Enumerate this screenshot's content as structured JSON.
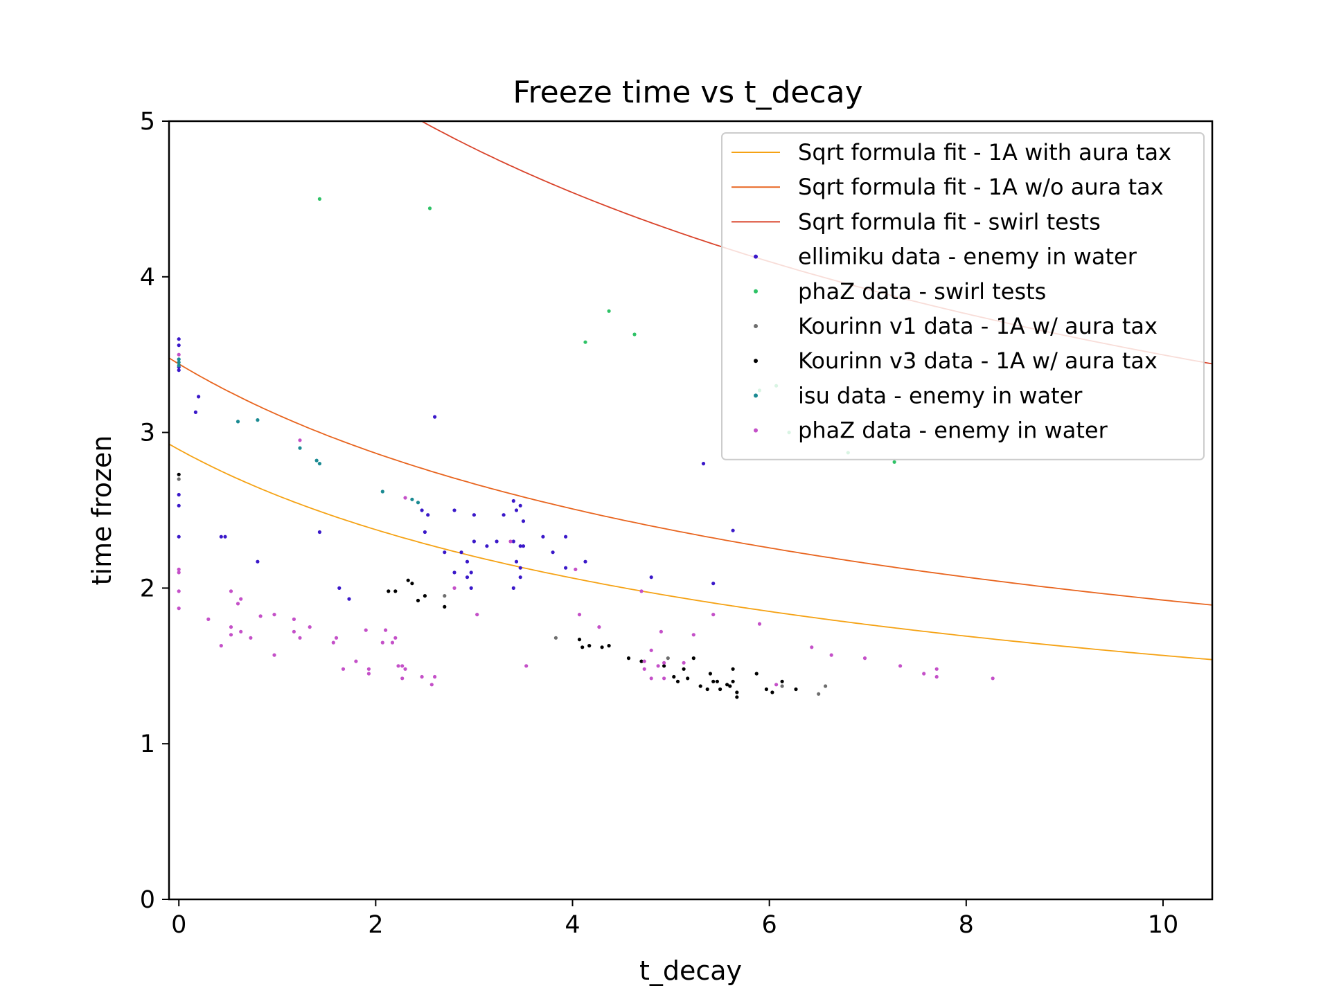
{
  "chart_data": {
    "type": "scatter",
    "title": "Freeze time vs t_decay",
    "xlabel": "t_decay",
    "ylabel": "time frozen",
    "xlim": [
      -0.1,
      10.5
    ],
    "ylim": [
      0,
      5
    ],
    "xticks": [
      0,
      2,
      4,
      6,
      8,
      10
    ],
    "yticks": [
      0,
      1,
      2,
      3,
      4,
      5
    ],
    "grid": false,
    "legend_position": "top-right",
    "lines": [
      {
        "name": "Sqrt formula fit - 1A with aura tax",
        "color": "#f5a214",
        "a": 2.89,
        "b": 0.24
      },
      {
        "name": "Sqrt formula fit - 1A w/o aura tax",
        "color": "#e8641e",
        "a": 3.44,
        "b": 0.22
      },
      {
        "name": "Sqrt formula fit - swirl tests",
        "color": "#d9432a",
        "a": 6.16,
        "b": 0.21
      }
    ],
    "series": [
      {
        "name": "ellimiku data - enemy in water",
        "color": "#3a18c9",
        "points": [
          [
            0,
            3.6
          ],
          [
            0,
            3.56
          ],
          [
            0,
            3.42
          ],
          [
            0,
            3.4
          ],
          [
            0,
            2.6
          ],
          [
            0,
            2.53
          ],
          [
            0,
            2.33
          ],
          [
            0.17,
            3.13
          ],
          [
            0.2,
            3.23
          ],
          [
            0.43,
            2.33
          ],
          [
            0.47,
            2.33
          ],
          [
            0.8,
            2.17
          ],
          [
            1.43,
            2.36
          ],
          [
            1.63,
            2.0
          ],
          [
            1.73,
            1.93
          ],
          [
            2.47,
            2.5
          ],
          [
            2.5,
            2.36
          ],
          [
            2.53,
            2.47
          ],
          [
            2.6,
            3.1
          ],
          [
            2.7,
            2.23
          ],
          [
            2.8,
            2.5
          ],
          [
            2.8,
            2.1
          ],
          [
            2.87,
            2.23
          ],
          [
            2.93,
            2.17
          ],
          [
            2.93,
            2.07
          ],
          [
            2.97,
            2.1
          ],
          [
            2.97,
            2.0
          ],
          [
            3.0,
            2.47
          ],
          [
            3.0,
            2.3
          ],
          [
            3.13,
            2.27
          ],
          [
            3.23,
            2.3
          ],
          [
            3.3,
            2.47
          ],
          [
            3.4,
            2.56
          ],
          [
            3.4,
            2.3
          ],
          [
            3.43,
            2.5
          ],
          [
            3.43,
            2.17
          ],
          [
            3.4,
            2.0
          ],
          [
            3.47,
            2.53
          ],
          [
            3.47,
            2.27
          ],
          [
            3.47,
            2.13
          ],
          [
            3.47,
            2.07
          ],
          [
            3.5,
            2.43
          ],
          [
            3.5,
            2.27
          ],
          [
            3.7,
            2.33
          ],
          [
            3.8,
            2.23
          ],
          [
            3.93,
            2.33
          ],
          [
            3.93,
            2.13
          ],
          [
            4.13,
            2.17
          ],
          [
            4.8,
            2.07
          ],
          [
            5.33,
            2.8
          ],
          [
            5.43,
            2.03
          ],
          [
            5.63,
            2.37
          ]
        ]
      },
      {
        "name": "phaZ data - swirl tests",
        "color": "#2ec266",
        "points": [
          [
            1.43,
            4.5
          ],
          [
            2.55,
            4.44
          ],
          [
            4.13,
            3.58
          ],
          [
            4.37,
            3.78
          ],
          [
            4.63,
            3.63
          ],
          [
            5.9,
            3.27
          ],
          [
            6.07,
            3.3
          ],
          [
            6.2,
            3.0
          ],
          [
            6.8,
            2.87
          ],
          [
            7.27,
            2.81
          ]
        ]
      },
      {
        "name": "Kourinn v1 data - 1A w/ aura tax",
        "color": "#6e6e6e",
        "points": [
          [
            0,
            2.7
          ],
          [
            2.7,
            1.95
          ],
          [
            3.83,
            1.68
          ],
          [
            4.97,
            1.55
          ],
          [
            6.13,
            1.37
          ],
          [
            6.5,
            1.32
          ],
          [
            6.57,
            1.37
          ]
        ]
      },
      {
        "name": "Kourinn v3 data - 1A w/ aura tax",
        "color": "#000000",
        "points": [
          [
            0,
            2.73
          ],
          [
            2.13,
            1.98
          ],
          [
            2.2,
            1.98
          ],
          [
            2.33,
            2.05
          ],
          [
            2.37,
            2.03
          ],
          [
            2.43,
            1.92
          ],
          [
            2.5,
            1.95
          ],
          [
            2.7,
            1.88
          ],
          [
            4.07,
            1.67
          ],
          [
            4.1,
            1.62
          ],
          [
            4.17,
            1.63
          ],
          [
            4.3,
            1.62
          ],
          [
            4.37,
            1.63
          ],
          [
            4.57,
            1.55
          ],
          [
            4.7,
            1.53
          ],
          [
            4.93,
            1.5
          ],
          [
            5.03,
            1.43
          ],
          [
            5.07,
            1.4
          ],
          [
            5.13,
            1.48
          ],
          [
            5.17,
            1.42
          ],
          [
            5.23,
            1.55
          ],
          [
            5.3,
            1.37
          ],
          [
            5.37,
            1.35
          ],
          [
            5.4,
            1.45
          ],
          [
            5.43,
            1.4
          ],
          [
            5.47,
            1.4
          ],
          [
            5.5,
            1.35
          ],
          [
            5.57,
            1.38
          ],
          [
            5.6,
            1.37
          ],
          [
            5.63,
            1.48
          ],
          [
            5.63,
            1.4
          ],
          [
            5.67,
            1.33
          ],
          [
            5.67,
            1.3
          ],
          [
            5.87,
            1.45
          ],
          [
            5.97,
            1.35
          ],
          [
            6.03,
            1.33
          ],
          [
            6.13,
            1.4
          ],
          [
            6.27,
            1.35
          ]
        ]
      },
      {
        "name": "isu data - enemy in water",
        "color": "#1a8a92",
        "points": [
          [
            0,
            3.47
          ],
          [
            0,
            3.45
          ],
          [
            0,
            3.43
          ],
          [
            0.6,
            3.07
          ],
          [
            0.8,
            3.08
          ],
          [
            1.23,
            2.9
          ],
          [
            1.4,
            2.82
          ],
          [
            1.43,
            2.8
          ],
          [
            2.07,
            2.62
          ],
          [
            2.37,
            2.57
          ],
          [
            2.43,
            2.55
          ]
        ]
      },
      {
        "name": "phaZ data - enemy in water",
        "color": "#c450c8",
        "points": [
          [
            0,
            3.5
          ],
          [
            0,
            2.12
          ],
          [
            0,
            2.1
          ],
          [
            0,
            1.98
          ],
          [
            0,
            1.87
          ],
          [
            0.3,
            1.8
          ],
          [
            0.43,
            1.63
          ],
          [
            0.53,
            1.98
          ],
          [
            0.53,
            1.75
          ],
          [
            0.53,
            1.7
          ],
          [
            0.6,
            1.9
          ],
          [
            0.63,
            1.93
          ],
          [
            0.63,
            1.72
          ],
          [
            0.73,
            1.68
          ],
          [
            0.83,
            1.82
          ],
          [
            0.97,
            1.83
          ],
          [
            0.97,
            1.57
          ],
          [
            1.17,
            1.8
          ],
          [
            1.17,
            1.72
          ],
          [
            1.23,
            1.68
          ],
          [
            1.23,
            2.95
          ],
          [
            1.33,
            1.75
          ],
          [
            1.57,
            1.65
          ],
          [
            1.6,
            1.68
          ],
          [
            1.67,
            1.48
          ],
          [
            1.8,
            1.53
          ],
          [
            1.9,
            1.73
          ],
          [
            1.93,
            1.48
          ],
          [
            1.93,
            1.45
          ],
          [
            2.07,
            1.65
          ],
          [
            2.1,
            1.73
          ],
          [
            2.17,
            1.65
          ],
          [
            2.2,
            1.68
          ],
          [
            2.23,
            1.5
          ],
          [
            2.27,
            1.42
          ],
          [
            2.27,
            1.5
          ],
          [
            2.3,
            1.48
          ],
          [
            2.3,
            2.58
          ],
          [
            2.47,
            1.43
          ],
          [
            2.57,
            1.38
          ],
          [
            2.6,
            1.43
          ],
          [
            2.8,
            2.0
          ],
          [
            3.03,
            1.83
          ],
          [
            3.37,
            2.3
          ],
          [
            3.53,
            1.5
          ],
          [
            4.03,
            2.12
          ],
          [
            4.07,
            1.83
          ],
          [
            4.27,
            1.75
          ],
          [
            4.7,
            1.98
          ],
          [
            4.73,
            1.53
          ],
          [
            4.73,
            1.48
          ],
          [
            4.8,
            1.6
          ],
          [
            4.8,
            1.42
          ],
          [
            4.87,
            1.5
          ],
          [
            4.9,
            1.72
          ],
          [
            4.93,
            1.42
          ],
          [
            4.93,
            1.52
          ],
          [
            5.13,
            1.52
          ],
          [
            5.23,
            1.7
          ],
          [
            5.43,
            1.83
          ],
          [
            5.9,
            1.77
          ],
          [
            6.07,
            1.38
          ],
          [
            6.43,
            1.62
          ],
          [
            6.63,
            1.57
          ],
          [
            6.97,
            1.55
          ],
          [
            7.33,
            1.5
          ],
          [
            7.57,
            1.45
          ],
          [
            7.7,
            1.48
          ],
          [
            7.7,
            1.43
          ],
          [
            8.27,
            1.42
          ]
        ]
      }
    ]
  }
}
